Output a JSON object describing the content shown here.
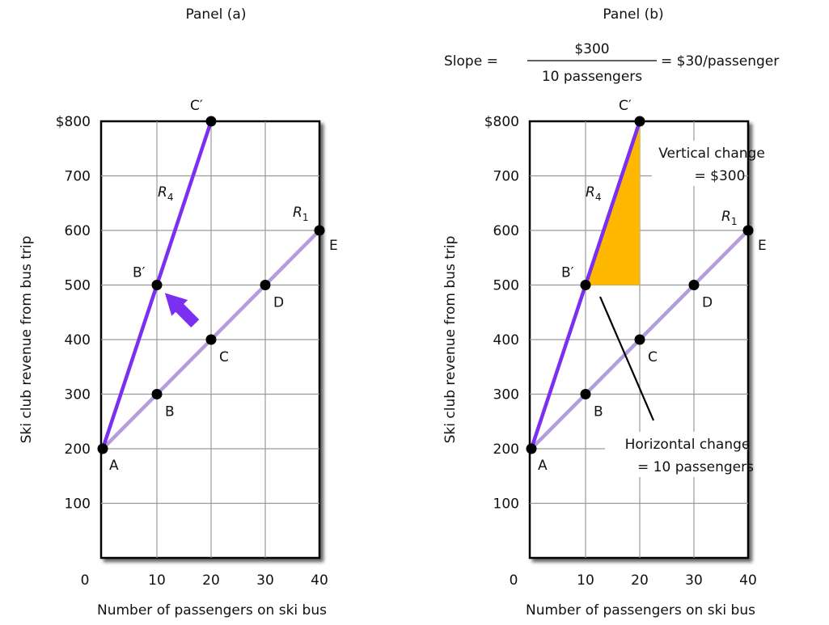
{
  "chart_data": [
    {
      "type": "line",
      "title": "Panel (a)",
      "xlabel": "Number of passengers on ski bus",
      "ylabel": "Ski club revenue from bus trip",
      "xlim": [
        0,
        40
      ],
      "ylim": [
        100,
        800
      ],
      "x_ticks": [
        "0",
        "10",
        "20",
        "30",
        "40"
      ],
      "y_ticks": [
        "$800",
        "700",
        "600",
        "500",
        "400",
        "300",
        "200",
        "100"
      ],
      "grid": true,
      "series": [
        {
          "name": "R1",
          "color": "#b39ddb",
          "x": [
            0,
            10,
            20,
            30,
            40
          ],
          "y": [
            200,
            300,
            400,
            500,
            600
          ]
        },
        {
          "name": "R4",
          "color": "#7b2ff0",
          "x": [
            0,
            10,
            20
          ],
          "y": [
            200,
            500,
            800
          ]
        }
      ],
      "points": [
        {
          "label": "A",
          "x": 0,
          "y": 200
        },
        {
          "label": "B",
          "x": 10,
          "y": 300
        },
        {
          "label": "C",
          "x": 20,
          "y": 400
        },
        {
          "label": "D",
          "x": 30,
          "y": 500
        },
        {
          "label": "E",
          "x": 40,
          "y": 600
        },
        {
          "label": "B′",
          "x": 10,
          "y": 500
        },
        {
          "label": "C′",
          "x": 20,
          "y": 800
        }
      ],
      "line_labels": [
        {
          "name": "R",
          "subscript": "4"
        },
        {
          "name": "R",
          "subscript": "1"
        }
      ],
      "arrow": {
        "from": "C",
        "to": "B′",
        "color": "#7b2ff0"
      }
    },
    {
      "type": "line",
      "title": "Panel (b)",
      "xlabel": "Number of passengers on ski bus",
      "ylabel": "Ski club revenue from bus trip",
      "xlim": [
        0,
        40
      ],
      "ylim": [
        100,
        800
      ],
      "x_ticks": [
        "0",
        "10",
        "20",
        "30",
        "40"
      ],
      "y_ticks": [
        "$800",
        "700",
        "600",
        "500",
        "400",
        "300",
        "200",
        "100"
      ],
      "grid": true,
      "series": [
        {
          "name": "R1",
          "color": "#b39ddb",
          "x": [
            0,
            10,
            20,
            30,
            40
          ],
          "y": [
            200,
            300,
            400,
            500,
            600
          ]
        },
        {
          "name": "R4",
          "color": "#7b2ff0",
          "x": [
            0,
            10,
            20
          ],
          "y": [
            200,
            500,
            800
          ]
        }
      ],
      "points": [
        {
          "label": "A",
          "x": 0,
          "y": 200
        },
        {
          "label": "B",
          "x": 10,
          "y": 300
        },
        {
          "label": "C",
          "x": 20,
          "y": 400
        },
        {
          "label": "D",
          "x": 30,
          "y": 500
        },
        {
          "label": "E",
          "x": 40,
          "y": 600
        },
        {
          "label": "B′",
          "x": 10,
          "y": 500
        },
        {
          "label": "C′",
          "x": 20,
          "y": 800
        }
      ],
      "line_labels": [
        {
          "name": "R",
          "subscript": "4"
        },
        {
          "name": "R",
          "subscript": "1"
        }
      ],
      "slope_triangle": {
        "vertices": [
          [
            10,
            500
          ],
          [
            20,
            500
          ],
          [
            20,
            800
          ]
        ],
        "color": "#ffb800"
      },
      "slope_formula": {
        "prefix": "Slope =",
        "numerator": "$300",
        "denominator": "10 passengers",
        "result": "= $30/passenger"
      },
      "annotations": {
        "vertical_line1": "Vertical change",
        "vertical_line2": "= $300",
        "horizontal_line1": "Horizontal change",
        "horizontal_line2": "= 10 passengers"
      }
    }
  ]
}
